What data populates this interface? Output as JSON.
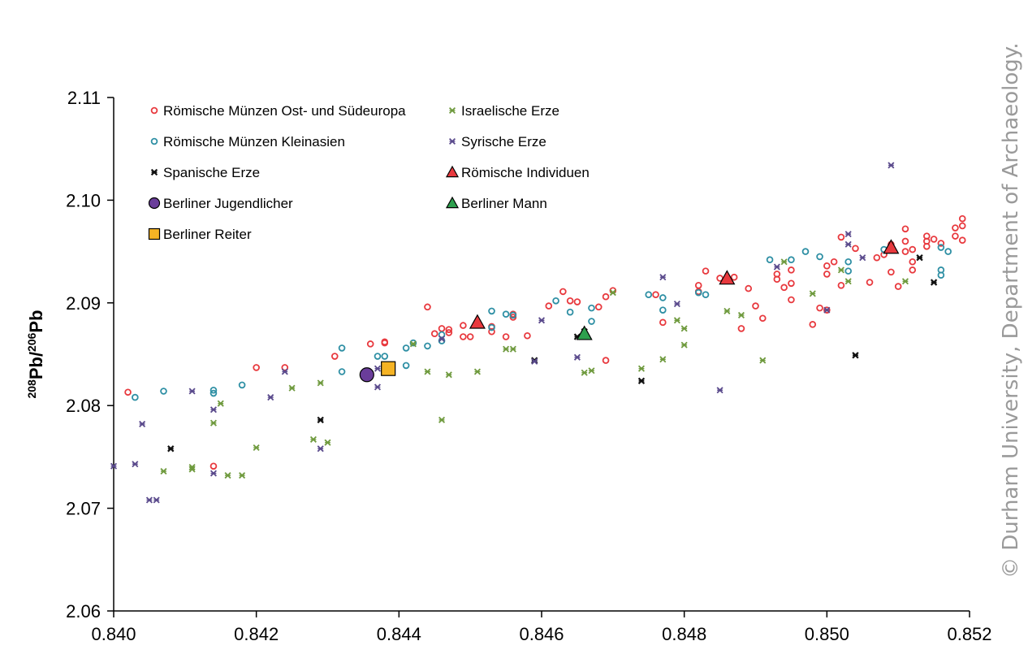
{
  "chart_data": {
    "type": "scatter",
    "ylabel": {
      "sup1": "208",
      "a": "Pb/",
      "sup2": "206",
      "b": "Pb"
    },
    "xlim": [
      0.84,
      0.852
    ],
    "ylim": [
      2.06,
      2.11
    ],
    "xticks": [
      "0.840",
      "0.842",
      "0.844",
      "0.846",
      "0.848",
      "0.850",
      "0.852"
    ],
    "yticks": [
      "2.06",
      "2.07",
      "2.08",
      "2.09",
      "2.10",
      "2.11"
    ],
    "grid": false,
    "legend_position": "top-left",
    "series": [
      {
        "name": "Römische Münzen Ost- und Südeuropa",
        "marker": "circle-open",
        "color": "#e8393e",
        "points": [
          [
            0.8402,
            2.0813
          ],
          [
            0.8414,
            2.0741
          ],
          [
            0.842,
            2.0837
          ],
          [
            0.8424,
            2.0837
          ],
          [
            0.8431,
            2.0848
          ],
          [
            0.8436,
            2.086
          ],
          [
            0.8438,
            2.0861
          ],
          [
            0.8438,
            2.0862
          ],
          [
            0.8444,
            2.0896
          ],
          [
            0.8445,
            2.087
          ],
          [
            0.8446,
            2.0875
          ],
          [
            0.8447,
            2.0871
          ],
          [
            0.8447,
            2.0874
          ],
          [
            0.8449,
            2.0867
          ],
          [
            0.8449,
            2.0878
          ],
          [
            0.845,
            2.0867
          ],
          [
            0.8453,
            2.0872
          ],
          [
            0.8453,
            2.0877
          ],
          [
            0.8455,
            2.0867
          ],
          [
            0.8456,
            2.0889
          ],
          [
            0.8456,
            2.0886
          ],
          [
            0.8458,
            2.0868
          ],
          [
            0.8461,
            2.0897
          ],
          [
            0.8463,
            2.0911
          ],
          [
            0.8464,
            2.0902
          ],
          [
            0.8465,
            2.0901
          ],
          [
            0.8468,
            2.0896
          ],
          [
            0.8469,
            2.0844
          ],
          [
            0.8469,
            2.0906
          ],
          [
            0.847,
            2.0912
          ],
          [
            0.8476,
            2.0908
          ],
          [
            0.8477,
            2.0881
          ],
          [
            0.8482,
            2.0917
          ],
          [
            0.8482,
            2.0911
          ],
          [
            0.8483,
            2.0931
          ],
          [
            0.8485,
            2.0924
          ],
          [
            0.8487,
            2.0925
          ],
          [
            0.8488,
            2.0875
          ],
          [
            0.8489,
            2.0914
          ],
          [
            0.849,
            2.0897
          ],
          [
            0.8491,
            2.0885
          ],
          [
            0.8493,
            2.0923
          ],
          [
            0.8493,
            2.0928
          ],
          [
            0.8494,
            2.0915
          ],
          [
            0.8495,
            2.0903
          ],
          [
            0.8495,
            2.0919
          ],
          [
            0.8495,
            2.0932
          ],
          [
            0.8498,
            2.0879
          ],
          [
            0.8499,
            2.0895
          ],
          [
            0.85,
            2.0893
          ],
          [
            0.85,
            2.0928
          ],
          [
            0.85,
            2.0936
          ],
          [
            0.8501,
            2.094
          ],
          [
            0.8502,
            2.0964
          ],
          [
            0.8502,
            2.0917
          ],
          [
            0.8504,
            2.0953
          ],
          [
            0.8506,
            2.092
          ],
          [
            0.8507,
            2.0944
          ],
          [
            0.8508,
            2.0947
          ],
          [
            0.8509,
            2.0957
          ],
          [
            0.8509,
            2.093
          ],
          [
            0.851,
            2.0916
          ],
          [
            0.8511,
            2.095
          ],
          [
            0.8511,
            2.096
          ],
          [
            0.8511,
            2.0972
          ],
          [
            0.8512,
            2.094
          ],
          [
            0.8512,
            2.0952
          ],
          [
            0.8512,
            2.0932
          ],
          [
            0.8514,
            2.0955
          ],
          [
            0.8514,
            2.096
          ],
          [
            0.8514,
            2.0965
          ],
          [
            0.8515,
            2.0962
          ],
          [
            0.8516,
            2.0958
          ],
          [
            0.8518,
            2.0973
          ],
          [
            0.8518,
            2.0965
          ],
          [
            0.8519,
            2.0975
          ],
          [
            0.8519,
            2.0961
          ],
          [
            0.8519,
            2.0982
          ]
        ]
      },
      {
        "name": "Römische Münzen Kleinasien",
        "marker": "circle-open",
        "color": "#2e8fa4",
        "points": [
          [
            0.8403,
            2.0808
          ],
          [
            0.8407,
            2.0814
          ],
          [
            0.8414,
            2.0812
          ],
          [
            0.8414,
            2.0815
          ],
          [
            0.8418,
            2.082
          ],
          [
            0.8432,
            2.0833
          ],
          [
            0.8432,
            2.0856
          ],
          [
            0.8437,
            2.0848
          ],
          [
            0.8438,
            2.0848
          ],
          [
            0.8441,
            2.0839
          ],
          [
            0.8441,
            2.0856
          ],
          [
            0.8442,
            2.0861
          ],
          [
            0.8444,
            2.0858
          ],
          [
            0.8446,
            2.0869
          ],
          [
            0.8446,
            2.0863
          ],
          [
            0.8453,
            2.0892
          ],
          [
            0.8453,
            2.0876
          ],
          [
            0.8455,
            2.0889
          ],
          [
            0.8456,
            2.0888
          ],
          [
            0.8462,
            2.0902
          ],
          [
            0.8464,
            2.0891
          ],
          [
            0.8467,
            2.0895
          ],
          [
            0.8467,
            2.0882
          ],
          [
            0.8475,
            2.0908
          ],
          [
            0.8477,
            2.0905
          ],
          [
            0.8477,
            2.0893
          ],
          [
            0.8482,
            2.091
          ],
          [
            0.8483,
            2.0908
          ],
          [
            0.8492,
            2.0942
          ],
          [
            0.8495,
            2.0942
          ],
          [
            0.8497,
            2.095
          ],
          [
            0.8499,
            2.0945
          ],
          [
            0.8503,
            2.094
          ],
          [
            0.8503,
            2.0931
          ],
          [
            0.8508,
            2.0952
          ],
          [
            0.8516,
            2.0927
          ],
          [
            0.8516,
            2.0932
          ],
          [
            0.8516,
            2.0954
          ],
          [
            0.8517,
            2.095
          ]
        ]
      },
      {
        "name": "Spanische Erze",
        "marker": "star-dark",
        "color": "#111111",
        "points": [
          [
            0.8408,
            2.0758
          ],
          [
            0.8429,
            2.0786
          ],
          [
            0.8459,
            2.0844
          ],
          [
            0.8465,
            2.0867
          ],
          [
            0.8466,
            2.0872
          ],
          [
            0.8474,
            2.0824
          ],
          [
            0.8504,
            2.0849
          ],
          [
            0.8513,
            2.0944
          ],
          [
            0.8515,
            2.092
          ]
        ]
      },
      {
        "name": "Israelische Erze",
        "marker": "star",
        "color": "#6f9a3e",
        "points": [
          [
            0.8407,
            2.0736
          ],
          [
            0.8411,
            2.0738
          ],
          [
            0.8411,
            2.074
          ],
          [
            0.8414,
            2.0783
          ],
          [
            0.8415,
            2.0802
          ],
          [
            0.8416,
            2.0732
          ],
          [
            0.8418,
            2.0732
          ],
          [
            0.842,
            2.0759
          ],
          [
            0.8425,
            2.0817
          ],
          [
            0.8428,
            2.0767
          ],
          [
            0.8429,
            2.0822
          ],
          [
            0.843,
            2.0764
          ],
          [
            0.8442,
            2.086
          ],
          [
            0.8444,
            2.0833
          ],
          [
            0.8446,
            2.0786
          ],
          [
            0.8447,
            2.083
          ],
          [
            0.8451,
            2.0833
          ],
          [
            0.8455,
            2.0855
          ],
          [
            0.8456,
            2.0855
          ],
          [
            0.8466,
            2.0832
          ],
          [
            0.8467,
            2.0834
          ],
          [
            0.847,
            2.091
          ],
          [
            0.8474,
            2.0836
          ],
          [
            0.8477,
            2.0845
          ],
          [
            0.8479,
            2.0883
          ],
          [
            0.848,
            2.0875
          ],
          [
            0.848,
            2.0859
          ],
          [
            0.8486,
            2.0892
          ],
          [
            0.8488,
            2.0888
          ],
          [
            0.8491,
            2.0844
          ],
          [
            0.8494,
            2.094
          ],
          [
            0.8498,
            2.0909
          ],
          [
            0.8502,
            2.0932
          ],
          [
            0.8503,
            2.0921
          ],
          [
            0.8511,
            2.0921
          ]
        ]
      },
      {
        "name": "Syrische Erze",
        "marker": "star",
        "color": "#5a4a8c",
        "points": [
          [
            0.84,
            2.0741
          ],
          [
            0.8403,
            2.0743
          ],
          [
            0.8404,
            2.0782
          ],
          [
            0.8405,
            2.0708
          ],
          [
            0.8406,
            2.0708
          ],
          [
            0.8411,
            2.0814
          ],
          [
            0.8414,
            2.0796
          ],
          [
            0.8414,
            2.0734
          ],
          [
            0.8422,
            2.0808
          ],
          [
            0.8424,
            2.0833
          ],
          [
            0.8429,
            2.0758
          ],
          [
            0.8437,
            2.0818
          ],
          [
            0.8437,
            2.0836
          ],
          [
            0.8446,
            2.0865
          ],
          [
            0.8459,
            2.0843
          ],
          [
            0.846,
            2.0883
          ],
          [
            0.8465,
            2.0847
          ],
          [
            0.8477,
            2.0925
          ],
          [
            0.8479,
            2.0899
          ],
          [
            0.8485,
            2.0815
          ],
          [
            0.8493,
            2.0935
          ],
          [
            0.85,
            2.0893
          ],
          [
            0.8503,
            2.0967
          ],
          [
            0.8503,
            2.0957
          ],
          [
            0.8505,
            2.0944
          ],
          [
            0.8509,
            2.1034
          ]
        ]
      },
      {
        "name": "Römische Individuen",
        "marker": "triangle",
        "color": "#e8393e",
        "points": [
          [
            0.8451,
            2.0881
          ],
          [
            0.8486,
            2.0924
          ],
          [
            0.8509,
            2.0954
          ]
        ]
      },
      {
        "name": "Berliner Jugendlicher",
        "marker": "circle-filled",
        "color": "#6a3d9a",
        "points": [
          [
            0.84355,
            2.083
          ]
        ]
      },
      {
        "name": "Berliner Mann",
        "marker": "triangle",
        "color": "#2ea04e",
        "points": [
          [
            0.8466,
            2.087
          ]
        ]
      },
      {
        "name": "Berliner Reiter",
        "marker": "square",
        "color": "#f5b324",
        "points": [
          [
            0.84385,
            2.0836
          ]
        ]
      }
    ]
  },
  "copyright": "© Durham University, Department of Archaeology."
}
